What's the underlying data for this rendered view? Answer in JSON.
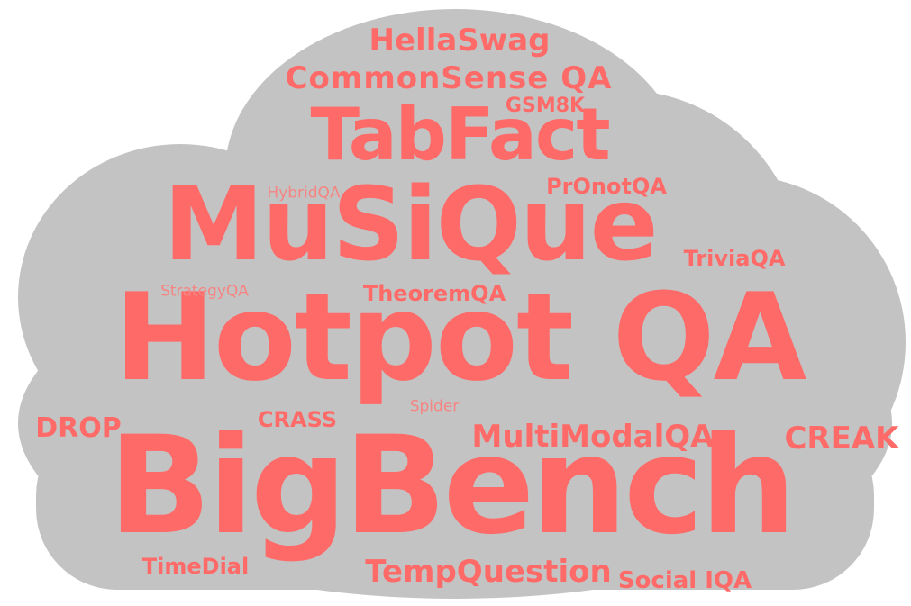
{
  "colors": {
    "cloud": "#c4c3c4",
    "word": "#fe6a67",
    "word_light": "#f48582",
    "background": "#ffffff"
  },
  "words": [
    {
      "id": "hotpot-qa",
      "text": "Hotpot QA"
    },
    {
      "id": "bigbench",
      "text": "BigBench"
    },
    {
      "id": "musique",
      "text": "MuSiQue"
    },
    {
      "id": "tabfact",
      "text": "TabFact"
    },
    {
      "id": "commonsense-qa",
      "text": "CommonSense QA"
    },
    {
      "id": "hellaswag",
      "text": "HellaSwag"
    },
    {
      "id": "gsm8k",
      "text": "GSM8K"
    },
    {
      "id": "pronotqa",
      "text": "PrOnotQA"
    },
    {
      "id": "hybridqa",
      "text": "HybridQA"
    },
    {
      "id": "triviaqa",
      "text": "TriviaQA"
    },
    {
      "id": "strategyqa",
      "text": "StrategyQA"
    },
    {
      "id": "theoremqa",
      "text": "TheoremQA"
    },
    {
      "id": "spider",
      "text": "Spider"
    },
    {
      "id": "drop",
      "text": "DROP"
    },
    {
      "id": "crass",
      "text": "CRASS"
    },
    {
      "id": "multimodalqa",
      "text": "MultiModalQA"
    },
    {
      "id": "creak",
      "text": "CREAK"
    },
    {
      "id": "timedial",
      "text": "TimeDial"
    },
    {
      "id": "tempquestion",
      "text": "TempQuestion"
    },
    {
      "id": "social-iqa",
      "text": "Social IQA"
    }
  ]
}
